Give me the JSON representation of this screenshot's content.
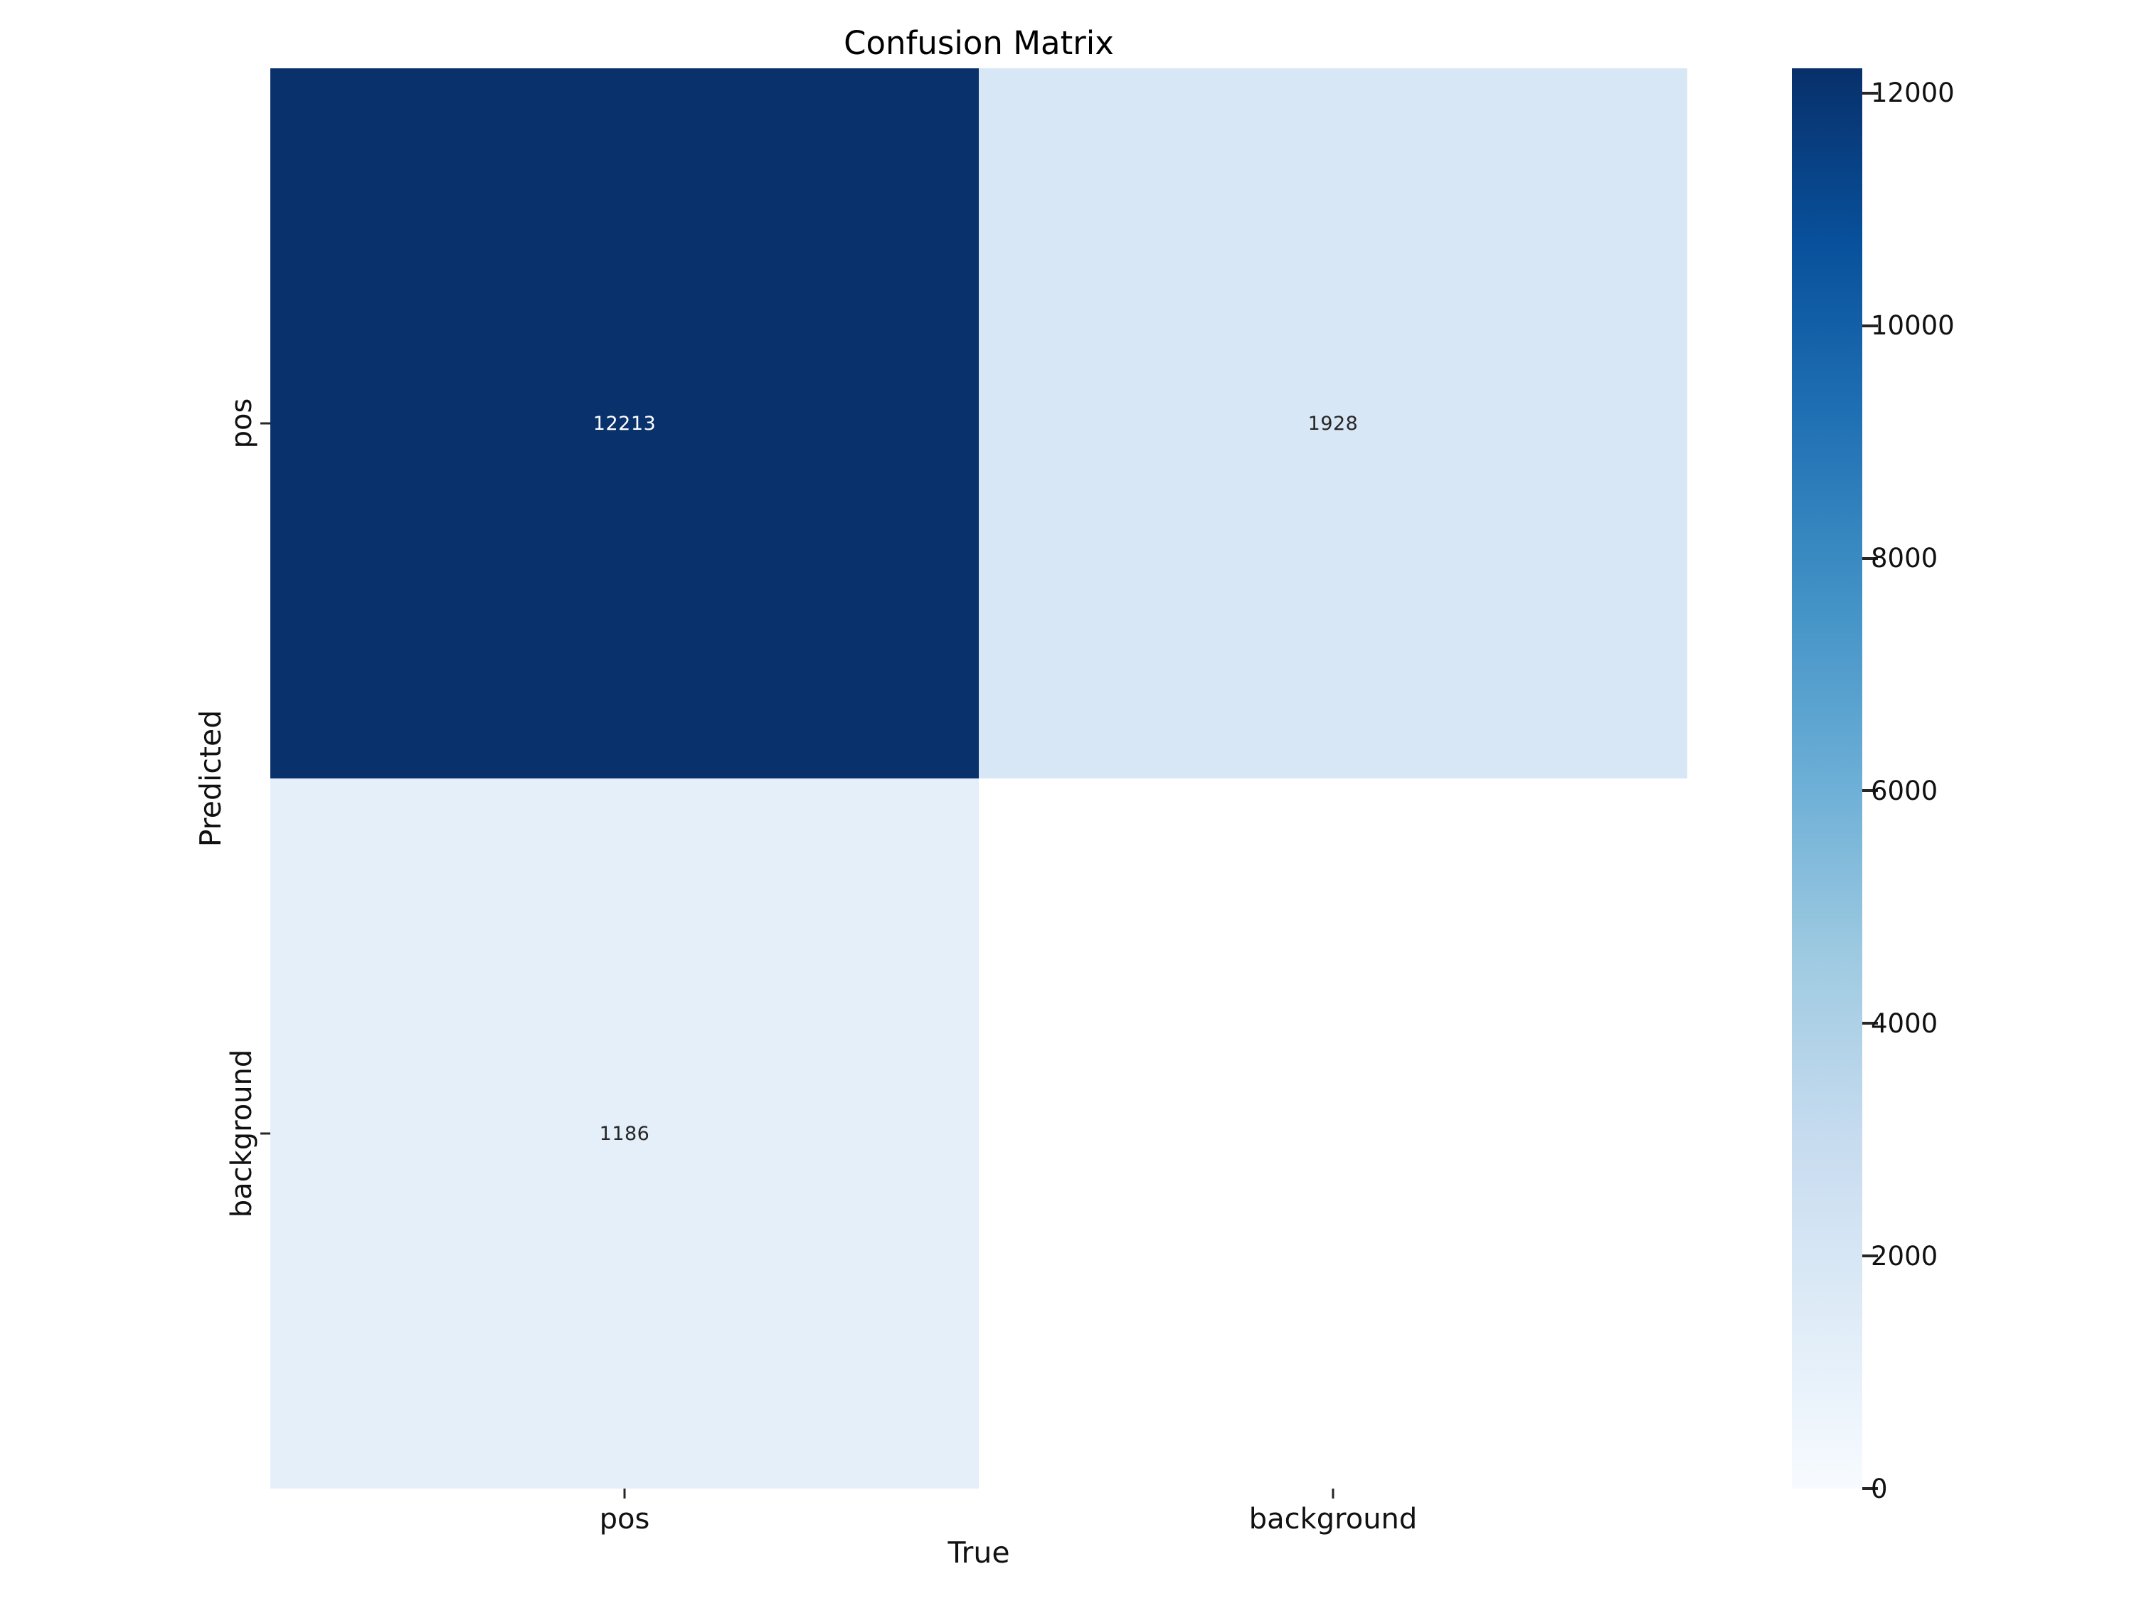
{
  "title": "Confusion Matrix",
  "axes": {
    "x_label": "True",
    "y_label": "Predicted",
    "x_ticks": [
      "pos",
      "background"
    ],
    "y_ticks": [
      "pos",
      "background"
    ]
  },
  "chart_data": {
    "type": "heatmap",
    "title": "Confusion Matrix",
    "xlabel": "True",
    "ylabel": "Predicted",
    "x_categories": [
      "pos",
      "background"
    ],
    "y_categories": [
      "pos",
      "background"
    ],
    "matrix": [
      [
        12213,
        1928
      ],
      [
        1186,
        null
      ]
    ],
    "cells": [
      {
        "row": "pos",
        "col": "pos",
        "value": 12213,
        "label": "12213",
        "color": "#09316c",
        "text_color": "#ffffff"
      },
      {
        "row": "pos",
        "col": "background",
        "value": 1928,
        "label": "1928",
        "color": "#d8e7f5",
        "text_color": "#262626"
      },
      {
        "row": "background",
        "col": "pos",
        "value": 1186,
        "label": "1186",
        "color": "#e4eff9",
        "text_color": "#262626"
      },
      {
        "row": "background",
        "col": "background",
        "value": null,
        "label": "",
        "color": "#ffffff",
        "text_color": "#262626"
      }
    ],
    "colormap": "Blues",
    "colormap_stops": [
      "#08306b",
      "#08519c",
      "#2171b5",
      "#4292c6",
      "#6baed6",
      "#9ecae1",
      "#c6dbef",
      "#deebf7",
      "#f7fbff"
    ],
    "vmin": 0,
    "vmax": 12213,
    "colorbar_ticks": [
      {
        "value": 0,
        "label": "0"
      },
      {
        "value": 2000,
        "label": "2000"
      },
      {
        "value": 4000,
        "label": "4000"
      },
      {
        "value": 6000,
        "label": "6000"
      },
      {
        "value": 8000,
        "label": "8000"
      },
      {
        "value": 10000,
        "label": "10000"
      },
      {
        "value": 12000,
        "label": "12000"
      }
    ],
    "grid": false,
    "legend_position": "right-colorbar"
  }
}
